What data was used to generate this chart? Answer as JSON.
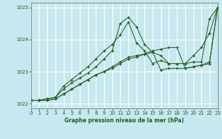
{
  "bg_color": "#c8e8f0",
  "grid_color": "#b0d8e0",
  "line_color": "#1e5c1e",
  "title": "Graphe pression niveau de la mer (hPa)",
  "xlim": [
    0,
    23
  ],
  "ylim": [
    1021.85,
    1025.15
  ],
  "yticks": [
    1022,
    1023,
    1024,
    1025
  ],
  "xticks": [
    0,
    1,
    2,
    3,
    4,
    5,
    6,
    7,
    8,
    9,
    10,
    11,
    12,
    13,
    14,
    15,
    16,
    17,
    18,
    19,
    20,
    21,
    22,
    23
  ],
  "series": [
    [
      1022.1,
      1022.1,
      1022.15,
      1022.2,
      1022.55,
      1022.75,
      1022.95,
      1023.15,
      1023.4,
      1023.65,
      1023.85,
      1024.15,
      1024.55,
      1023.9,
      1023.65,
      1023.25,
      1023.35,
      1023.25,
      1023.25,
      1023.25,
      1023.3,
      1023.3,
      1024.65,
      1025.0
    ],
    [
      1022.1,
      1022.1,
      1022.15,
      1022.2,
      1022.45,
      1022.65,
      1022.8,
      1022.95,
      1023.15,
      1023.4,
      1023.65,
      1024.5,
      1024.7,
      1024.4,
      1023.85,
      1023.6,
      1023.5,
      1023.25,
      1023.25,
      1023.25,
      1023.5,
      1023.75,
      1024.2,
      1025.0
    ],
    [
      1022.1,
      1022.1,
      1022.1,
      1022.15,
      1022.3,
      1022.45,
      1022.6,
      1022.75,
      1022.9,
      1023.0,
      1023.15,
      1023.3,
      1023.45,
      1023.5,
      1023.55,
      1023.65,
      1023.7,
      1023.75,
      1023.75,
      1023.1,
      1023.15,
      1023.2,
      1023.3,
      1025.0
    ],
    [
      1022.1,
      1022.1,
      1022.1,
      1022.15,
      1022.3,
      1022.45,
      1022.6,
      1022.75,
      1022.9,
      1023.0,
      1023.1,
      1023.25,
      1023.4,
      1023.45,
      1023.55,
      1023.6,
      1023.05,
      1023.1,
      1023.1,
      1023.1,
      1023.15,
      1023.2,
      1023.25,
      1025.0
    ]
  ]
}
